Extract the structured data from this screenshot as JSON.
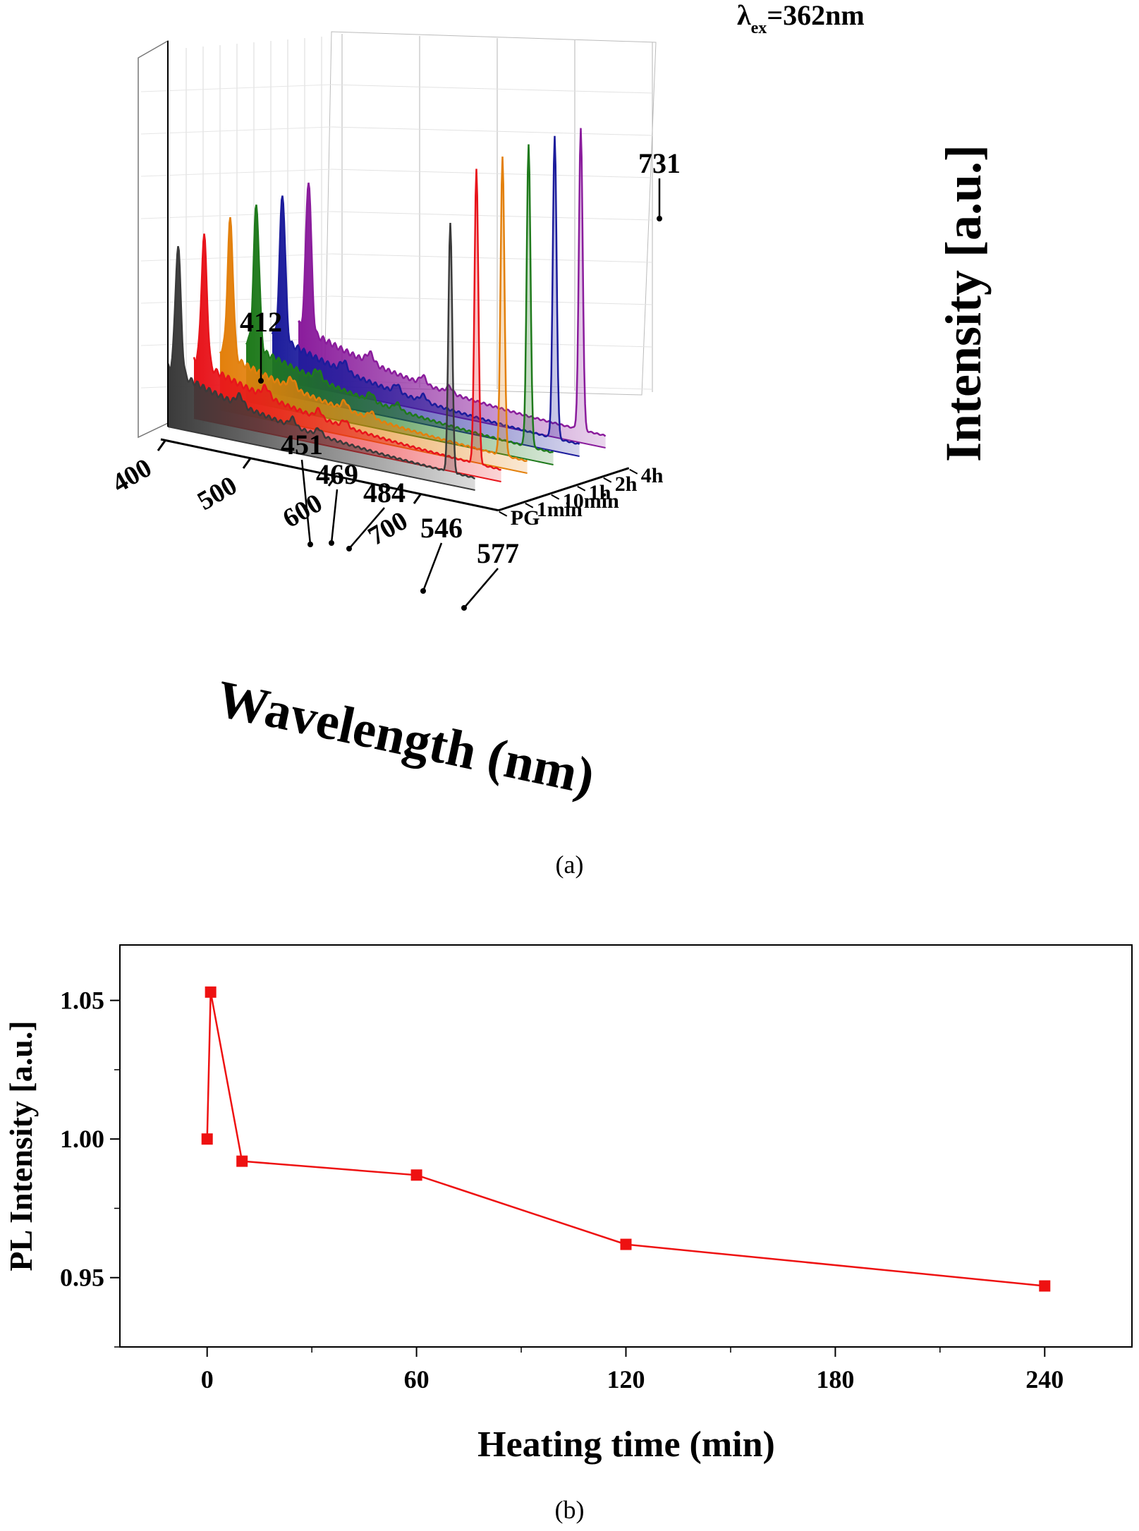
{
  "chart_data": [
    {
      "type": "area",
      "panel": "a",
      "caption": "(a)",
      "title": "λex=362nm",
      "title_main": "λ",
      "title_sub": "ex",
      "title_rest": "=362nm",
      "xlabel": "Wavelength (nm)",
      "ylabel": "Intensity [a.u.]",
      "zlabel": "",
      "xlim": [
        400,
        760
      ],
      "x_ticks": [
        400,
        500,
        600,
        700
      ],
      "series_labels": [
        "PG",
        "1min",
        "10min",
        "1h",
        "2h",
        "4h"
      ],
      "series_colors": [
        "#3a3a3a",
        "#e8141b",
        "#e3800c",
        "#1f7a1c",
        "#1c1c9c",
        "#8a1c9c"
      ],
      "peaks": [
        {
          "x": 412,
          "heights": [
            0.78,
            0.79,
            0.84,
            0.88,
            0.9,
            0.93
          ]
        },
        {
          "x": 731,
          "heights": [
            1.54,
            1.82,
            1.84,
            1.86,
            1.86,
            1.86
          ]
        }
      ],
      "annotations": [
        "412",
        "451",
        "469",
        "484",
        "546",
        "577",
        "731"
      ],
      "grid": true
    },
    {
      "type": "line",
      "panel": "b",
      "caption": "(b)",
      "xlabel": "Heating time (min)",
      "ylabel": "PL Intensity [a.u.]",
      "xlim": [
        -25,
        265
      ],
      "ylim": [
        0.925,
        1.07
      ],
      "x_ticks": [
        0,
        60,
        120,
        180,
        240
      ],
      "y_ticks": [
        0.95,
        1.0,
        1.05
      ],
      "y_tick_labels": [
        "0.95",
        "1.00",
        "1.05"
      ],
      "color": "#ee1111",
      "marker": "square",
      "x": [
        0,
        1,
        10,
        60,
        120,
        240
      ],
      "y": [
        1.0,
        1.053,
        0.992,
        0.987,
        0.962,
        0.947
      ]
    }
  ]
}
